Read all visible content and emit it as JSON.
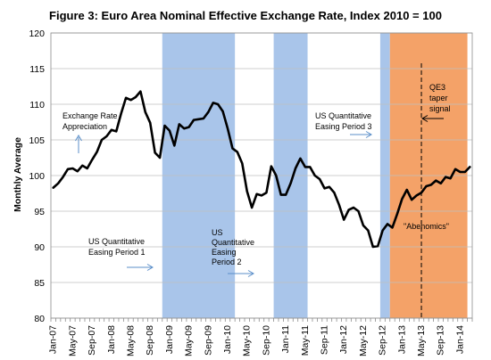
{
  "chart_data": {
    "type": "line",
    "title": "Figure 3: Euro Area Nominal Effective Exchange Rate, Index 2010 = 100",
    "ylabel": "Monthly Average",
    "ylim": [
      80,
      120
    ],
    "yticks": [
      80,
      85,
      90,
      95,
      100,
      105,
      110,
      115,
      120
    ],
    "x_tick_labels": [
      "Jan-07",
      "May-07",
      "Sep-07",
      "Jan-08",
      "May-08",
      "Sep-08",
      "Jan-09",
      "May-09",
      "Sep-09",
      "Jan-10",
      "May-10",
      "Sep-10",
      "Jan-11",
      "May-11",
      "Sep-11",
      "Jan-12",
      "May-12",
      "Sep-12",
      "Jan-13",
      "May-13",
      "Sep-13",
      "Jan-14"
    ],
    "start_month": "Jan-07",
    "series": [
      {
        "name": "",
        "color": "#000000",
        "values": [
          98.3,
          98.9,
          99.8,
          100.9,
          101.0,
          100.6,
          101.4,
          101.0,
          102.2,
          103.3,
          105.0,
          105.5,
          106.4,
          106.2,
          108.7,
          110.9,
          110.6,
          111.0,
          111.8,
          108.9,
          107.4,
          103.2,
          102.5,
          107.0,
          106.3,
          104.2,
          107.2,
          106.6,
          106.8,
          107.8,
          107.9,
          108.0,
          108.9,
          110.2,
          110.0,
          109.0,
          106.6,
          103.8,
          103.3,
          101.7,
          97.8,
          95.5,
          97.4,
          97.2,
          97.6,
          101.3,
          100.0,
          97.3,
          97.3,
          98.9,
          101.0,
          102.4,
          101.2,
          101.2,
          100.0,
          99.5,
          98.2,
          98.4,
          97.6,
          95.9,
          93.8,
          95.2,
          95.5,
          95.0,
          93.0,
          92.3,
          90.0,
          90.1,
          92.3,
          93.2,
          92.7,
          94.6,
          96.7,
          98.0,
          96.6,
          97.2,
          97.6,
          98.5,
          98.7,
          99.3,
          98.9,
          99.8,
          99.6,
          100.9,
          100.5,
          100.5,
          101.2
        ]
      }
    ],
    "shaded_periods": [
      {
        "label": "US Quantitative Easing Period 1",
        "start": "Dec-08",
        "end": "Mar-10",
        "color": "#a9c5ea"
      },
      {
        "label": "US Quantitative Easing Period 2",
        "start": "Nov-10",
        "end": "Jun-11",
        "color": "#a9c5ea"
      },
      {
        "label": "US Quantitative Easing Period 3",
        "start": "Sep-12",
        "end": "Nov-12",
        "color": "#a9c5ea"
      },
      {
        "label": "\"Abenomics\"",
        "start": "Nov-12",
        "end": "Mar-14",
        "color": "#f4a268"
      }
    ],
    "vertical_marker": {
      "label": "QE3 taper signal",
      "at": "May-13"
    },
    "annotations": {
      "appreciation": [
        "Exchange Rate",
        "Appreciation"
      ],
      "qe1": [
        "US Quantitative",
        "Easing Period 1"
      ],
      "qe2": [
        "US",
        "Quantitative",
        "Easing",
        "Period 2"
      ],
      "qe3": [
        "US Quantitative",
        "Easing Period 3"
      ],
      "abenomics": "\"Abenomics\"",
      "taper": [
        "QE3",
        "taper",
        "signal"
      ]
    }
  }
}
